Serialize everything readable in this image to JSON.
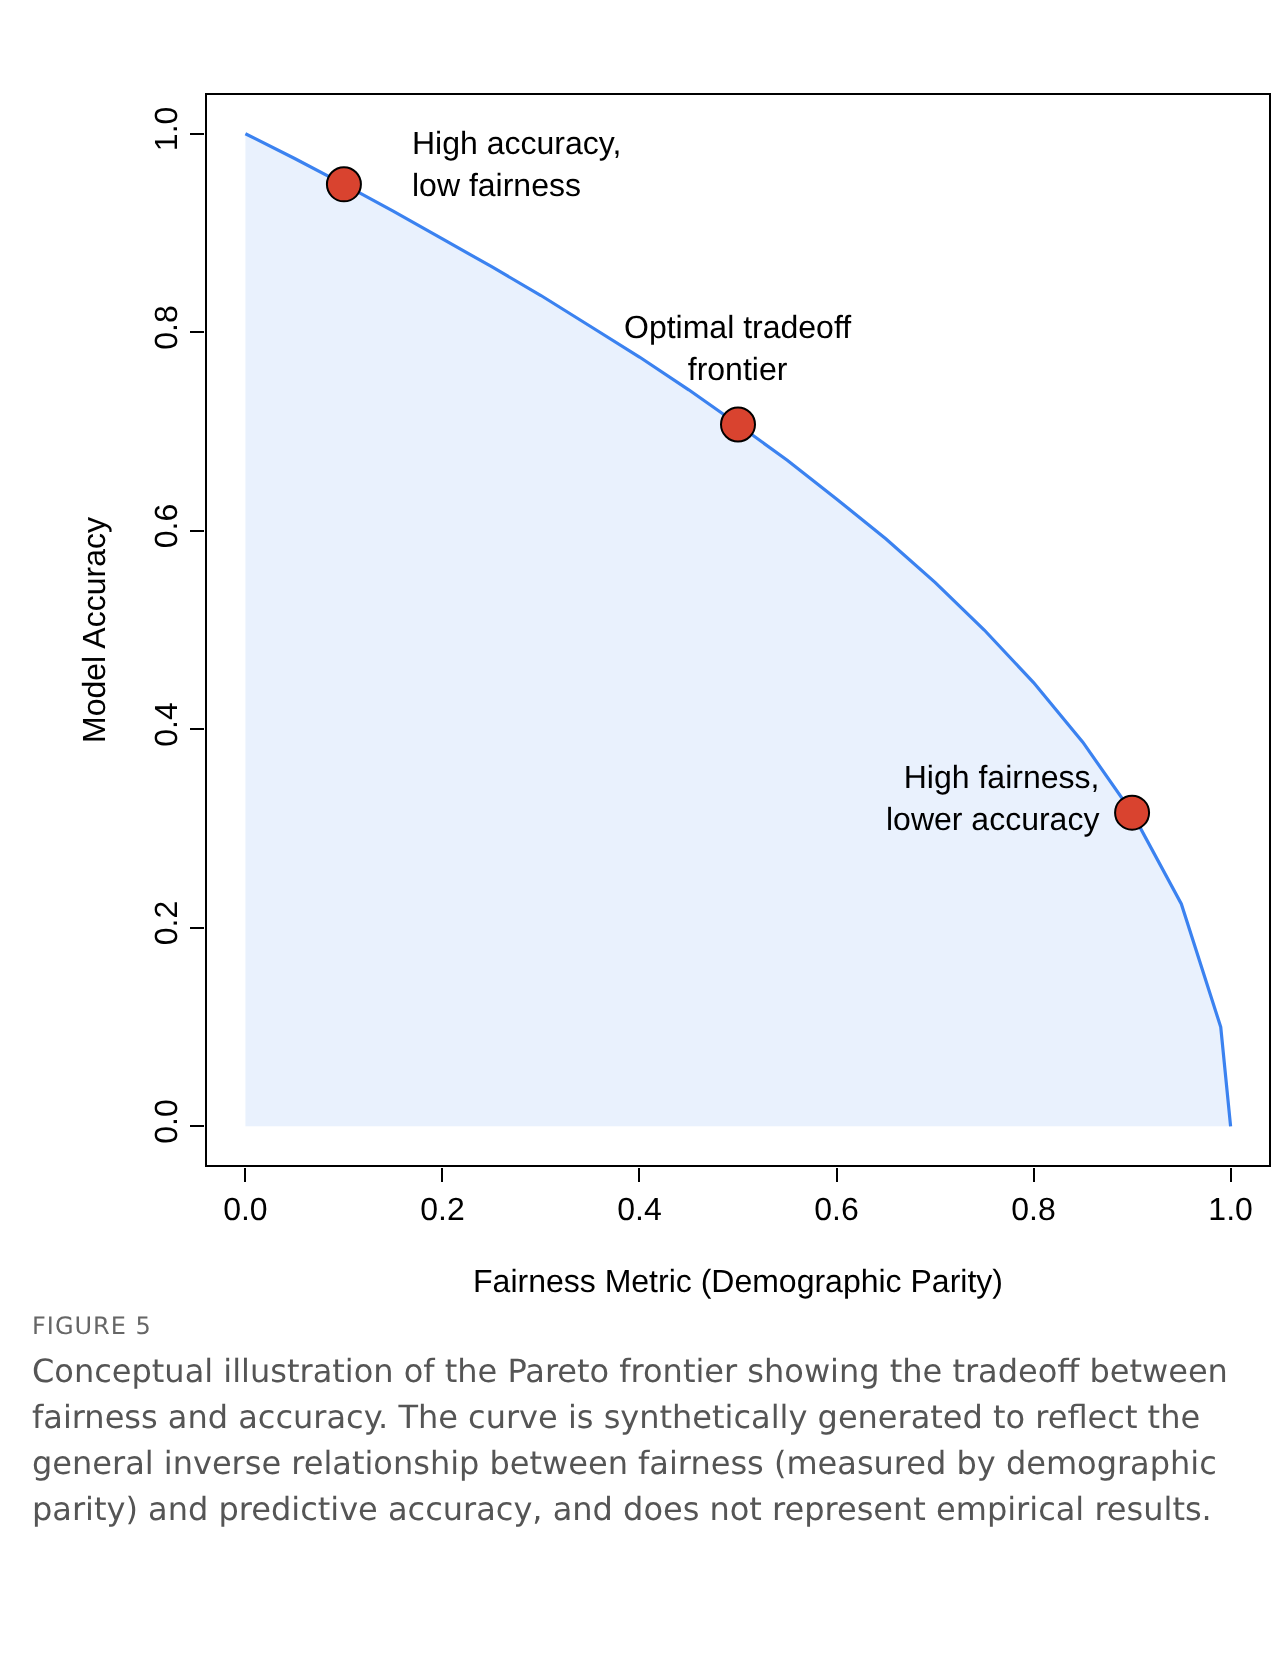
{
  "chart_data": {
    "type": "area",
    "xlabel": "Fairness Metric (Demographic Parity)",
    "ylabel": "Model Accuracy",
    "xlim": [
      -0.04,
      1.04
    ],
    "ylim": [
      -0.04,
      1.04
    ],
    "xticks": [
      {
        "value": 0,
        "label": "0.0"
      },
      0.2,
      0.4,
      0.6,
      0.8,
      {
        "value": 1,
        "label": "1.0"
      }
    ],
    "yticks": [
      {
        "value": 0,
        "label": "0.0"
      },
      0.2,
      0.4,
      0.6,
      0.8,
      {
        "value": 1,
        "label": "1.0"
      }
    ],
    "grid": false,
    "series": [
      {
        "color": "#3b82f0",
        "marker": "none",
        "x": [
          0,
          0.05,
          0.1,
          0.15,
          0.2,
          0.25,
          0.3,
          0.35,
          0.4,
          0.45,
          0.5,
          0.55,
          0.6,
          0.65,
          0.7,
          0.75,
          0.8,
          0.85,
          0.9,
          0.95,
          0.99,
          1
        ],
        "values": [
          1,
          0.975,
          0.949,
          0.922,
          0.894,
          0.866,
          0.837,
          0.806,
          0.775,
          0.742,
          0.707,
          0.671,
          0.632,
          0.592,
          0.548,
          0.5,
          0.447,
          0.387,
          0.316,
          0.224,
          0.1,
          0
        ]
      },
      {
        "type": "scatter",
        "color": "#d9432f",
        "marker": "circle",
        "x": [
          0.1,
          0.5,
          0.9
        ],
        "values": [
          0.949,
          0.707,
          0.316
        ]
      }
    ],
    "annotations": [
      {
        "text": "High accuracy,\nlow fairness",
        "x": 0.1,
        "y": 0.949
      },
      {
        "text": "Optimal tradeoff\nfrontier",
        "x": 0.5,
        "y": 0.707
      },
      {
        "text": "High fairness,\nlower accuracy",
        "x": 0.9,
        "y": 0.316
      },
      "FIGURE 5",
      "Conceptual illustration of the Pareto frontier showing the tradeoff between fairness and accuracy. The curve is synthetically generated to reflect the general inverse relationship between fairness (measured by demographic parity) and predictive accuracy, and does not represent empirical results."
    ]
  }
}
